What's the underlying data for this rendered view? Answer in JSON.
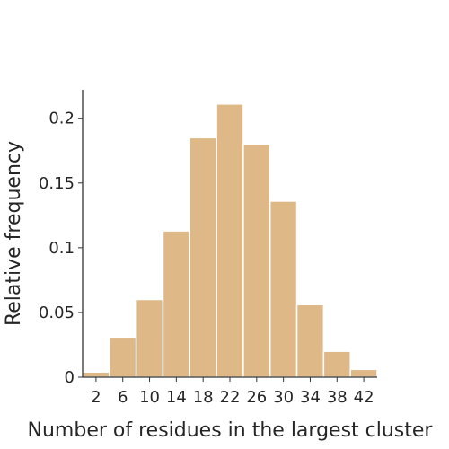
{
  "chart_data": {
    "type": "bar",
    "title": "",
    "xlabel": "Number of residues in the largest cluster",
    "ylabel": "Relative frequency",
    "bin_edges": [
      0,
      4,
      8,
      12,
      16,
      20,
      24,
      28,
      32,
      36,
      40,
      44
    ],
    "values": [
      0.004,
      0.031,
      0.06,
      0.113,
      0.185,
      0.211,
      0.18,
      0.136,
      0.056,
      0.02,
      0.006
    ],
    "xlim": [
      0,
      44
    ],
    "ylim": [
      0,
      0.222
    ],
    "x_ticks": [
      2,
      6,
      10,
      14,
      18,
      22,
      26,
      30,
      34,
      38,
      42
    ],
    "x_tick_labels": [
      "2",
      "6",
      "10",
      "14",
      "18",
      "22",
      "26",
      "30",
      "34",
      "38",
      "42"
    ],
    "y_ticks": [
      0,
      0.05,
      0.1,
      0.15,
      0.2
    ],
    "y_tick_labels": [
      "0",
      "0.05",
      "0.1",
      "0.15",
      "0.2"
    ],
    "bar_color": "#DEB887",
    "bar_edge_color": "#ffffff",
    "grid": false,
    "legend": "none"
  }
}
